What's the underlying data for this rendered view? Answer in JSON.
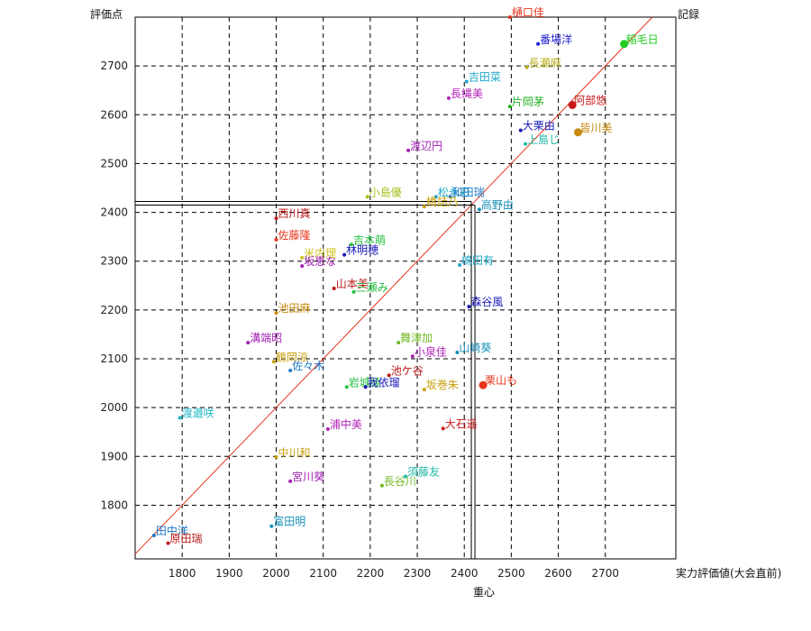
{
  "chart_data": {
    "type": "scatter",
    "title": "",
    "ylabel": "評価点",
    "ylabel_right": "記録",
    "xlabel": "実力評価値(大会直前)",
    "xlabel_bottom": "重心",
    "xlim": [
      1700,
      2850
    ],
    "ylim": [
      1690,
      2800
    ],
    "x_ticks": [
      1800,
      1900,
      2000,
      2100,
      2200,
      2300,
      2400,
      2500,
      2600,
      2700
    ],
    "y_ticks": [
      1800,
      1900,
      2000,
      2100,
      2200,
      2300,
      2400,
      2500,
      2600,
      2700
    ],
    "grid": true,
    "diagonal": true,
    "centroid": {
      "x": 2415,
      "y": 2415
    },
    "points": [
      {
        "name": "樋口佳",
        "x": 2497,
        "y": 2800,
        "color": "#e8341c",
        "big": false
      },
      {
        "name": "番場洋",
        "x": 2557,
        "y": 2745,
        "color": "#1c1ccf",
        "big": false
      },
      {
        "name": "稲毛日",
        "x": 2740,
        "y": 2745,
        "color": "#22cc22",
        "big": true
      },
      {
        "name": "長瀬麻",
        "x": 2533,
        "y": 2697,
        "color": "#b8b020",
        "big": false
      },
      {
        "name": "吉田菜",
        "x": 2405,
        "y": 2668,
        "color": "#20a8c8",
        "big": false
      },
      {
        "name": "長縄美",
        "x": 2367,
        "y": 2634,
        "color": "#b020b8",
        "big": false
      },
      {
        "name": "片岡茅",
        "x": 2497,
        "y": 2617,
        "color": "#22b022",
        "big": false
      },
      {
        "name": "阿部悠",
        "x": 2630,
        "y": 2620,
        "color": "#c81818",
        "big": true
      },
      {
        "name": "大栗由",
        "x": 2520,
        "y": 2568,
        "color": "#1818b8",
        "big": false
      },
      {
        "name": "皆川美",
        "x": 2642,
        "y": 2564,
        "color": "#c88a10",
        "big": true
      },
      {
        "name": "上島じ",
        "x": 2530,
        "y": 2540,
        "color": "#20b8a8",
        "big": false
      },
      {
        "name": "渡辺円",
        "x": 2281,
        "y": 2527,
        "color": "#a020b0",
        "big": false
      },
      {
        "name": "小島優",
        "x": 2194,
        "y": 2432,
        "color": "#a8c020",
        "big": false
      },
      {
        "name": "松永彩",
        "x": 2340,
        "y": 2432,
        "color": "#20a8c8",
        "big": false
      },
      {
        "name": "和田瑞",
        "x": 2370,
        "y": 2432,
        "color": "#1c78c8",
        "big": false
      },
      {
        "name": "橋詰乃",
        "x": 2315,
        "y": 2412,
        "color": "#c8a010",
        "big": false
      },
      {
        "name": "高野由",
        "x": 2432,
        "y": 2406,
        "color": "#1890b8",
        "big": false
      },
      {
        "name": "西川真",
        "x": 2000,
        "y": 2388,
        "color": "#b81818",
        "big": false
      },
      {
        "name": "佐藤隆",
        "x": 2000,
        "y": 2344,
        "color": "#e8341c",
        "big": false
      },
      {
        "name": "吉本萌",
        "x": 2160,
        "y": 2334,
        "color": "#22c040",
        "big": false
      },
      {
        "name": "林明穂",
        "x": 2145,
        "y": 2313,
        "color": "#1818b8",
        "big": false
      },
      {
        "name": "米内理",
        "x": 2055,
        "y": 2307,
        "color": "#d0c020",
        "big": false
      },
      {
        "name": "坂恵な",
        "x": 2055,
        "y": 2290,
        "color": "#a020b0",
        "big": false
      },
      {
        "name": "嶋田有",
        "x": 2390,
        "y": 2292,
        "color": "#20a8c8",
        "big": false
      },
      {
        "name": "山本美",
        "x": 2123,
        "y": 2244,
        "color": "#b81818",
        "big": false
      },
      {
        "name": "三瀬み",
        "x": 2165,
        "y": 2237,
        "color": "#22c040",
        "big": false
      },
      {
        "name": "森谷風",
        "x": 2410,
        "y": 2207,
        "color": "#1818b8",
        "big": false
      },
      {
        "name": "池田麻",
        "x": 2000,
        "y": 2194,
        "color": "#c88a10",
        "big": false
      },
      {
        "name": "溝端昭",
        "x": 1940,
        "y": 2133,
        "color": "#a020b0",
        "big": false
      },
      {
        "name": "舞津加",
        "x": 2260,
        "y": 2133,
        "color": "#70b820",
        "big": false
      },
      {
        "name": "山崎葵",
        "x": 2385,
        "y": 2113,
        "color": "#1890b8",
        "big": false
      },
      {
        "name": "小泉佳",
        "x": 2290,
        "y": 2105,
        "color": "#b020b8",
        "big": false
      },
      {
        "name": "鶴岡涼",
        "x": 1995,
        "y": 2094,
        "color": "#c8a010",
        "big": false
      },
      {
        "name": "佐々木",
        "x": 2030,
        "y": 2076,
        "color": "#1c78c8",
        "big": false
      },
      {
        "name": "池ケ谷",
        "x": 2240,
        "y": 2066,
        "color": "#b81818",
        "big": false
      },
      {
        "name": "岩城綾",
        "x": 2150,
        "y": 2042,
        "color": "#22c040",
        "big": false
      },
      {
        "name": "我依瑠",
        "x": 2190,
        "y": 2042,
        "color": "#1818b8",
        "big": false
      },
      {
        "name": "坂巻朱",
        "x": 2315,
        "y": 2037,
        "color": "#c8a010",
        "big": false
      },
      {
        "name": "栗山も",
        "x": 2440,
        "y": 2046,
        "color": "#e8341c",
        "big": true
      },
      {
        "name": "渡邉咲",
        "x": 1795,
        "y": 1979,
        "color": "#20b8c8",
        "big": false
      },
      {
        "name": "浦中美",
        "x": 2110,
        "y": 1956,
        "color": "#b020b8",
        "big": false
      },
      {
        "name": "大石遥",
        "x": 2355,
        "y": 1957,
        "color": "#c81818",
        "big": false
      },
      {
        "name": "中川和",
        "x": 2000,
        "y": 1898,
        "color": "#c8a010",
        "big": false
      },
      {
        "name": "須藤友",
        "x": 2275,
        "y": 1859,
        "color": "#20b8a8",
        "big": false
      },
      {
        "name": "宮川葵",
        "x": 2030,
        "y": 1849,
        "color": "#a020b0",
        "big": false
      },
      {
        "name": "長谷川",
        "x": 2225,
        "y": 1840,
        "color": "#70b820",
        "big": false
      },
      {
        "name": "富田明",
        "x": 1990,
        "y": 1757,
        "color": "#1890b8",
        "big": false
      },
      {
        "name": "田中洋",
        "x": 1740,
        "y": 1738,
        "color": "#1c78c8",
        "big": false
      },
      {
        "name": "原田瑞",
        "x": 1770,
        "y": 1722,
        "color": "#b81818",
        "big": false
      }
    ],
    "diagonal_color": "#e8341c",
    "grid_color": "#000000"
  }
}
